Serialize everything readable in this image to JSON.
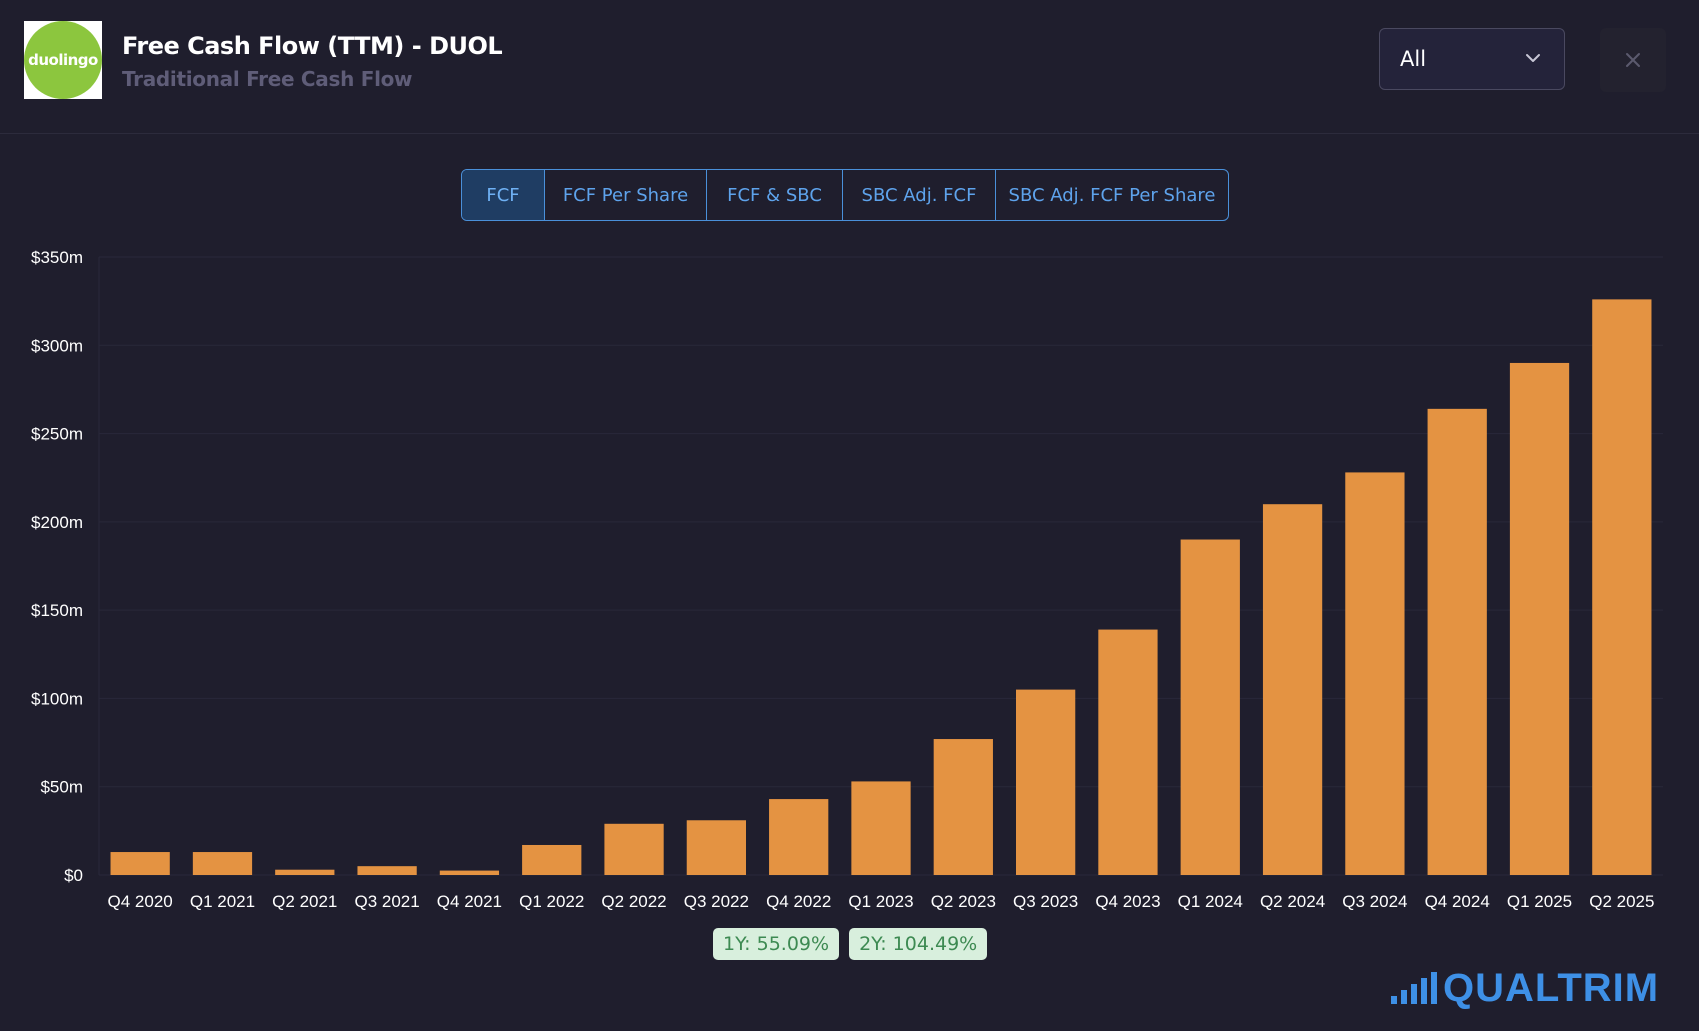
{
  "header": {
    "logo_text": "duolingo",
    "title": "Free Cash Flow (TTM) - DUOL",
    "subtitle": "Traditional Free Cash Flow",
    "range_select_value": "All",
    "close_label": "×"
  },
  "tabs": [
    {
      "label": "FCF",
      "active": true
    },
    {
      "label": "FCF Per Share",
      "active": false
    },
    {
      "label": "FCF & SBC",
      "active": false
    },
    {
      "label": "SBC Adj. FCF",
      "active": false
    },
    {
      "label": "SBC Adj. FCF Per Share",
      "active": false
    }
  ],
  "badges": {
    "one_year": "1Y: 55.09%",
    "two_year": "2Y: 104.49%"
  },
  "brand": {
    "name": "QUALTRIM"
  },
  "colors": {
    "bar": "#e49342",
    "background": "#1f1e2d",
    "accent": "#4a90d9",
    "badge_bg": "#d8efdd",
    "badge_text": "#3d8a52"
  },
  "chart_data": {
    "type": "bar",
    "categories": [
      "Q4 2020",
      "Q1 2021",
      "Q2 2021",
      "Q3 2021",
      "Q4 2021",
      "Q1 2022",
      "Q2 2022",
      "Q3 2022",
      "Q4 2022",
      "Q1 2023",
      "Q2 2023",
      "Q3 2023",
      "Q4 2023",
      "Q1 2024",
      "Q2 2024",
      "Q3 2024",
      "Q4 2024",
      "Q1 2025",
      "Q2 2025"
    ],
    "values": [
      13,
      13,
      3,
      5,
      2.5,
      17,
      29,
      31,
      43,
      53,
      77,
      105,
      139,
      190,
      210,
      228,
      264,
      290,
      326
    ],
    "unit": "$m",
    "yticks": [
      "$0",
      "$50m",
      "$100m",
      "$150m",
      "$200m",
      "$250m",
      "$300m",
      "$350m"
    ],
    "ylim": [
      0,
      350
    ],
    "title": "",
    "xlabel": "",
    "ylabel": "",
    "grid": true
  }
}
